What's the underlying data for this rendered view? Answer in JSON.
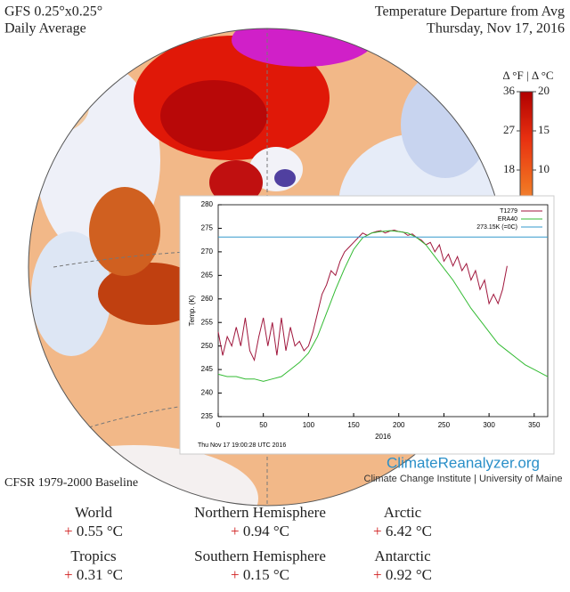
{
  "header": {
    "left_title": "GFS 0.25°x0.25°",
    "left_subtitle": "Daily Average",
    "right_title": "Temperature Departure from Avg",
    "right_subtitle": "Thursday, Nov 17, 2016"
  },
  "colorbar": {
    "label": "Δ °F | Δ °C",
    "flim": [
      0,
      36
    ],
    "fticks": [
      36,
      27,
      18
    ],
    "clim": [
      0,
      20
    ],
    "cticks": [
      20,
      15,
      10
    ]
  },
  "chart_data": {
    "type": "line",
    "xlabel": "2016",
    "ylabel": "Temp. (K)",
    "annotation": "Thu Nov 17 19:00:28 UTC 2016",
    "xlim": [
      0,
      365
    ],
    "xticks": [
      0,
      50,
      100,
      150,
      200,
      250,
      300,
      350
    ],
    "ylim": [
      235,
      280
    ],
    "yticks": [
      235,
      240,
      245,
      250,
      255,
      260,
      265,
      270,
      275,
      280
    ],
    "series": [
      {
        "name": "T1279",
        "color": "#a0163c",
        "x": [
          0,
          5,
          10,
          15,
          20,
          25,
          30,
          35,
          40,
          45,
          50,
          55,
          60,
          65,
          70,
          75,
          80,
          85,
          90,
          95,
          100,
          105,
          110,
          115,
          120,
          125,
          130,
          135,
          140,
          145,
          150,
          155,
          160,
          165,
          170,
          175,
          180,
          185,
          190,
          195,
          200,
          205,
          210,
          215,
          220,
          225,
          230,
          235,
          240,
          245,
          250,
          255,
          260,
          265,
          270,
          275,
          280,
          285,
          290,
          295,
          300,
          305,
          310,
          315,
          320
        ],
        "values": [
          253,
          248,
          252,
          250,
          254,
          250,
          256,
          249,
          247,
          252,
          256,
          250,
          255,
          248,
          256,
          249,
          254,
          250,
          251,
          249,
          250,
          253,
          257,
          261,
          263,
          266,
          265,
          268,
          270,
          271,
          272,
          273,
          274,
          273.5,
          274,
          274.3,
          274.5,
          274,
          274.4,
          274.6,
          274.3,
          274.2,
          273.5,
          273.8,
          273,
          272.5,
          271.5,
          272,
          270,
          271.5,
          268,
          269.5,
          267,
          269,
          266,
          267.5,
          264,
          266,
          262,
          264,
          259,
          261,
          259,
          262,
          267
        ]
      },
      {
        "name": "ERA40",
        "color": "#33bb33",
        "x": [
          0,
          10,
          20,
          30,
          40,
          50,
          60,
          70,
          80,
          90,
          100,
          110,
          120,
          130,
          140,
          150,
          160,
          170,
          180,
          190,
          200,
          210,
          220,
          230,
          240,
          250,
          260,
          270,
          280,
          290,
          300,
          310,
          320,
          330,
          340,
          350,
          360,
          365
        ],
        "values": [
          244,
          243.5,
          243.5,
          243,
          243,
          242.5,
          243,
          243.5,
          245,
          246.5,
          248.5,
          252,
          257,
          262,
          266.5,
          270.5,
          273,
          274,
          274.3,
          274.5,
          274.3,
          274,
          273,
          271.5,
          269,
          266.5,
          264,
          261,
          258,
          255.5,
          253,
          250.5,
          249,
          247.5,
          246,
          245,
          244,
          243.5
        ]
      },
      {
        "name": "273.15K (=0C)",
        "color": "#3399cc",
        "x": [
          0,
          365
        ],
        "values": [
          273.15,
          273.15
        ]
      }
    ]
  },
  "branding": {
    "site": "ClimateReanalyzer.org",
    "institute": "Climate Change Institute | University of Maine"
  },
  "baseline": "CFSR 1979-2000 Baseline",
  "stats": [
    {
      "region": "World",
      "sign": "+",
      "value": "0.55 °C"
    },
    {
      "region": "Northern Hemisphere",
      "sign": "+",
      "value": "0.94 °C"
    },
    {
      "region": "Arctic",
      "sign": "+",
      "value": "6.42 °C"
    },
    {
      "region": "Tropics",
      "sign": "+",
      "value": "0.31 °C"
    },
    {
      "region": "Southern Hemisphere",
      "sign": "+",
      "value": "0.15 °C"
    },
    {
      "region": "Antarctic",
      "sign": "+",
      "value": "0.92 °C"
    }
  ]
}
